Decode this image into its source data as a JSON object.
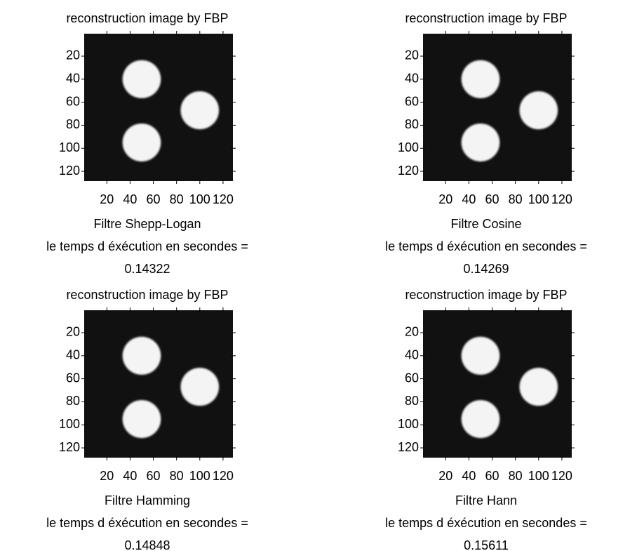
{
  "chart_data": [
    {
      "type": "image",
      "colormap": "gray",
      "y_reversed": true,
      "title": "reconstruction image by FBP",
      "xlabel": [
        "Filtre Shepp-Logan",
        "le temps d éxécution en secondes =",
        "0.14322"
      ],
      "xlim": [
        0.5,
        128.5
      ],
      "ylim": [
        0.5,
        128.5
      ],
      "xticks": [
        20,
        40,
        60,
        80,
        100,
        120
      ],
      "yticks": [
        20,
        40,
        60,
        80,
        100,
        120
      ]
    },
    {
      "type": "image",
      "colormap": "gray",
      "y_reversed": true,
      "title": "reconstruction image by FBP",
      "xlabel": [
        "Filtre Cosine",
        "le temps d éxécution en secondes =",
        "0.14269"
      ],
      "xlim": [
        0.5,
        128.5
      ],
      "ylim": [
        0.5,
        128.5
      ],
      "xticks": [
        20,
        40,
        60,
        80,
        100,
        120
      ],
      "yticks": [
        20,
        40,
        60,
        80,
        100,
        120
      ]
    },
    {
      "type": "image",
      "colormap": "gray",
      "y_reversed": true,
      "title": "reconstruction image by FBP",
      "xlabel": [
        "Filtre Hamming",
        "le temps d éxécution en secondes =",
        "0.14848"
      ],
      "xlim": [
        0.5,
        128.5
      ],
      "ylim": [
        0.5,
        128.5
      ],
      "xticks": [
        20,
        40,
        60,
        80,
        100,
        120
      ],
      "yticks": [
        20,
        40,
        60,
        80,
        100,
        120
      ]
    },
    {
      "type": "image",
      "colormap": "gray",
      "y_reversed": true,
      "title": "reconstruction image by FBP",
      "xlabel": [
        "Filtre Hann",
        "le temps d éxécution en secondes =",
        "0.15611"
      ],
      "xlim": [
        0.5,
        128.5
      ],
      "ylim": [
        0.5,
        128.5
      ],
      "xticks": [
        20,
        40,
        60,
        80,
        100,
        120
      ],
      "yticks": [
        20,
        40,
        60,
        80,
        100,
        120
      ]
    }
  ]
}
